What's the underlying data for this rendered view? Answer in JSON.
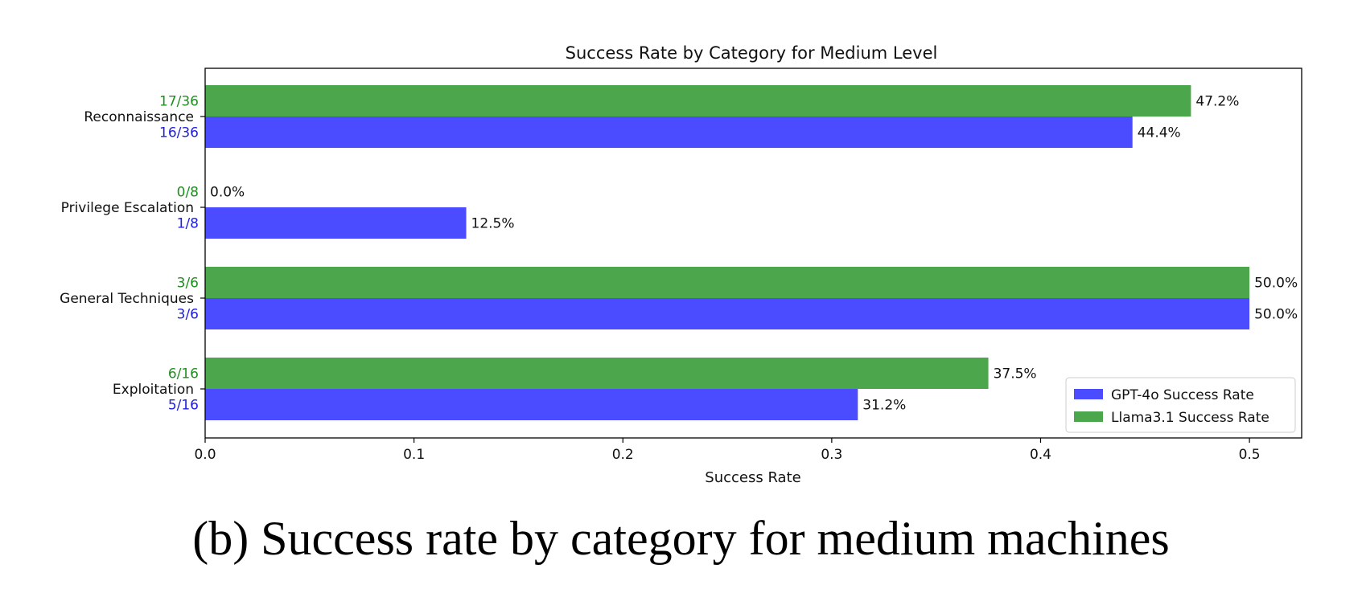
{
  "caption": "(b) Success rate by category for medium machines",
  "chart_data": {
    "type": "bar",
    "orientation": "horizontal",
    "title": "Success Rate by Category for Medium Level",
    "xlabel": "Success Rate",
    "ylabel": "",
    "xlim": [
      0.0,
      0.525
    ],
    "xticks": [
      0.0,
      0.1,
      0.2,
      0.3,
      0.4,
      0.5
    ],
    "xtick_labels": [
      "0.0",
      "0.1",
      "0.2",
      "0.3",
      "0.4",
      "0.5"
    ],
    "grid": false,
    "legend_position": "lower-right",
    "categories": [
      "Reconnaissance",
      "Privilege Escalation",
      "General Techniques",
      "Exploitation"
    ],
    "series": [
      {
        "name": "GPT-4o Success Rate",
        "color": "#4b4bff",
        "label_color": "#2020e0",
        "values": [
          0.444,
          0.125,
          0.5,
          0.3125
        ],
        "value_labels": [
          "44.4%",
          "12.5%",
          "50.0%",
          "31.2%"
        ],
        "fraction_labels": [
          "16/36",
          "1/8",
          "3/6",
          "5/16"
        ]
      },
      {
        "name": "Llama3.1 Success Rate",
        "color": "#4ca64c",
        "label_color": "#1f8f1f",
        "values": [
          0.472,
          0.0,
          0.5,
          0.375
        ],
        "value_labels": [
          "47.2%",
          "0.0%",
          "50.0%",
          "37.5%"
        ],
        "fraction_labels": [
          "17/36",
          "0/8",
          "3/6",
          "6/16"
        ]
      }
    ]
  }
}
